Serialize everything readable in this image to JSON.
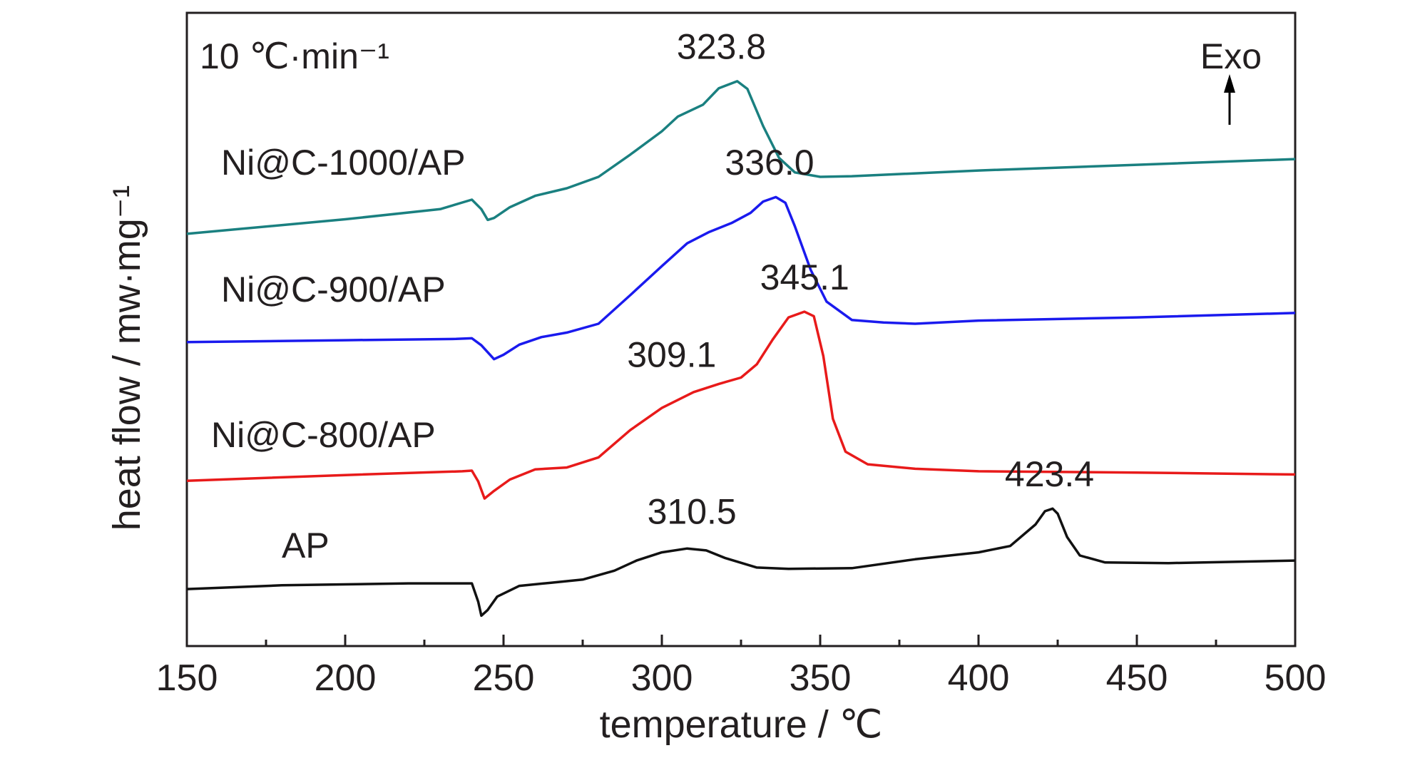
{
  "chart_data": {
    "type": "line",
    "title": "",
    "xlabel": "temperature / ℃",
    "ylabel": "heat flow / mw·mg⁻¹",
    "xlim": [
      150,
      500
    ],
    "ylim": [
      0,
      100
    ],
    "x_ticks": [
      "150",
      "200",
      "250",
      "300",
      "350",
      "400",
      "450",
      "500"
    ],
    "y_ticks": [],
    "grid": false,
    "rate_label": "10 ℃·min⁻¹",
    "exo_label": "Exo",
    "colors": {
      "axis": "#231f20",
      "ni1000": "#1a8080",
      "ni900": "#1a1aee",
      "ni800": "#e81a1a",
      "ap": "#111111"
    },
    "series": [
      {
        "name": "Ni@C-1000/AP",
        "color": "#1a8080",
        "points": [
          [
            150,
            65.1
          ],
          [
            200,
            67.4
          ],
          [
            230,
            69.0
          ],
          [
            240,
            70.5
          ],
          [
            243,
            69.0
          ],
          [
            245,
            67.3
          ],
          [
            247,
            67.6
          ],
          [
            252,
            69.3
          ],
          [
            260,
            71.1
          ],
          [
            270,
            72.3
          ],
          [
            280,
            74.1
          ],
          [
            290,
            77.6
          ],
          [
            300,
            81.3
          ],
          [
            305,
            83.6
          ],
          [
            313,
            85.5
          ],
          [
            318,
            88.1
          ],
          [
            323.8,
            89.2
          ],
          [
            327,
            88.0
          ],
          [
            332,
            82.1
          ],
          [
            337,
            77.1
          ],
          [
            342,
            74.8
          ],
          [
            350,
            74.1
          ],
          [
            360,
            74.2
          ],
          [
            400,
            75.1
          ],
          [
            450,
            76.0
          ],
          [
            500,
            76.9
          ]
        ],
        "labels": [
          {
            "x": 323.8,
            "text": "323.8",
            "dx": -5,
            "dy": -1.5
          }
        ]
      },
      {
        "name": "Ni@C-900/AP",
        "color": "#1a1aee",
        "points": [
          [
            150,
            48.0
          ],
          [
            200,
            48.3
          ],
          [
            235,
            48.5
          ],
          [
            240,
            48.6
          ],
          [
            243,
            47.5
          ],
          [
            247,
            45.3
          ],
          [
            250,
            46.0
          ],
          [
            255,
            47.6
          ],
          [
            262,
            48.8
          ],
          [
            270,
            49.5
          ],
          [
            280,
            50.9
          ],
          [
            290,
            55.4
          ],
          [
            300,
            60.0
          ],
          [
            308,
            63.6
          ],
          [
            315,
            65.4
          ],
          [
            322,
            66.8
          ],
          [
            328,
            68.4
          ],
          [
            332,
            70.2
          ],
          [
            336,
            70.9
          ],
          [
            339,
            70.0
          ],
          [
            342,
            66.3
          ],
          [
            347,
            59.4
          ],
          [
            352,
            54.4
          ],
          [
            360,
            51.5
          ],
          [
            370,
            51.1
          ],
          [
            380,
            50.9
          ],
          [
            400,
            51.4
          ],
          [
            450,
            51.9
          ],
          [
            500,
            52.6
          ]
        ],
        "labels": [
          {
            "x": 336.0,
            "text": "336.0",
            "dx": -2,
            "dy": -1.5
          }
        ]
      },
      {
        "name": "Ni@C-800/AP",
        "color": "#e81a1a",
        "points": [
          [
            150,
            26.1
          ],
          [
            200,
            27.0
          ],
          [
            237,
            27.6
          ],
          [
            240,
            27.7
          ],
          [
            242,
            26.0
          ],
          [
            244,
            23.3
          ],
          [
            247,
            24.5
          ],
          [
            252,
            26.3
          ],
          [
            260,
            27.9
          ],
          [
            270,
            28.2
          ],
          [
            280,
            29.8
          ],
          [
            290,
            34.1
          ],
          [
            300,
            37.6
          ],
          [
            310,
            40.1
          ],
          [
            318,
            41.4
          ],
          [
            325,
            42.4
          ],
          [
            330,
            44.5
          ],
          [
            335,
            48.4
          ],
          [
            340,
            51.9
          ],
          [
            345,
            52.8
          ],
          [
            348,
            52.1
          ],
          [
            351,
            45.8
          ],
          [
            354,
            35.9
          ],
          [
            358,
            30.7
          ],
          [
            365,
            28.7
          ],
          [
            380,
            28.0
          ],
          [
            400,
            27.6
          ],
          [
            450,
            27.4
          ],
          [
            500,
            27.1
          ]
        ],
        "labels": [
          {
            "x": 345.1,
            "text": "345.1",
            "dx": 0,
            "dy": -1.5
          },
          {
            "x": 309.1,
            "text": "309.1",
            "dx": -6,
            "dy": -2.2
          }
        ]
      },
      {
        "name": "AP",
        "color": "#111111",
        "points": [
          [
            150,
            9.0
          ],
          [
            180,
            9.6
          ],
          [
            220,
            9.9
          ],
          [
            240,
            9.9
          ],
          [
            242,
            7.0
          ],
          [
            243,
            4.8
          ],
          [
            245,
            5.7
          ],
          [
            248,
            7.8
          ],
          [
            255,
            9.5
          ],
          [
            265,
            10.0
          ],
          [
            275,
            10.5
          ],
          [
            285,
            11.9
          ],
          [
            292,
            13.5
          ],
          [
            300,
            14.8
          ],
          [
            308,
            15.4
          ],
          [
            314,
            15.1
          ],
          [
            320,
            13.9
          ],
          [
            330,
            12.4
          ],
          [
            340,
            12.2
          ],
          [
            360,
            12.3
          ],
          [
            380,
            13.7
          ],
          [
            400,
            14.8
          ],
          [
            410,
            15.8
          ],
          [
            418,
            19.2
          ],
          [
            421,
            21.3
          ],
          [
            423.4,
            21.7
          ],
          [
            425,
            20.9
          ],
          [
            428,
            17.2
          ],
          [
            432,
            14.3
          ],
          [
            440,
            13.2
          ],
          [
            460,
            13.1
          ],
          [
            500,
            13.5
          ]
        ],
        "labels": [
          {
            "x": 310.5,
            "text": "310.5",
            "dx": -1,
            "dy": -2.0
          },
          {
            "x": 423.4,
            "text": "423.4",
            "dx": -1,
            "dy": -1.5
          }
        ]
      }
    ]
  }
}
